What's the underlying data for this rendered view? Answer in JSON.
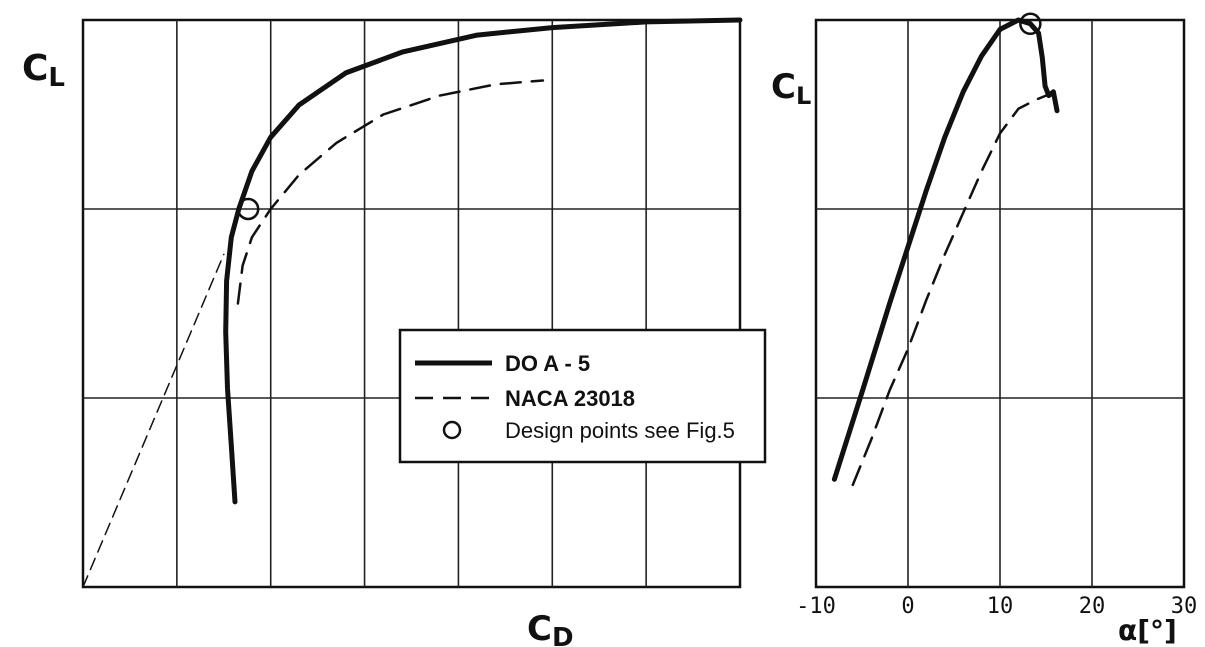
{
  "chart_data": [
    {
      "type": "line",
      "xlabel": "C_D",
      "ylabel": "C_L",
      "xlim": [
        0,
        7
      ],
      "ylim": [
        0,
        3
      ],
      "grid": true,
      "x_gridlines": [
        1,
        2,
        3,
        4,
        5,
        6
      ],
      "y_gridlines": [
        1,
        2
      ],
      "series": [
        {
          "name": "DO A-5",
          "style": "solid-thick",
          "x": [
            1.62,
            1.58,
            1.54,
            1.52,
            1.53,
            1.58,
            1.66,
            1.8,
            2.0,
            2.3,
            2.8,
            3.4,
            4.2,
            5.0,
            6.0,
            7.0
          ],
          "y": [
            0.45,
            0.75,
            1.05,
            1.35,
            1.62,
            1.85,
            2.0,
            2.2,
            2.38,
            2.55,
            2.72,
            2.83,
            2.92,
            2.96,
            2.99,
            3.0
          ]
        },
        {
          "name": "NACA 23018",
          "style": "dashed",
          "x": [
            1.65,
            1.7,
            1.8,
            2.0,
            2.3,
            2.7,
            3.2,
            3.8,
            4.4,
            4.9
          ],
          "y": [
            1.5,
            1.7,
            1.85,
            2.0,
            2.18,
            2.35,
            2.5,
            2.6,
            2.66,
            2.68
          ]
        },
        {
          "name": "",
          "style": "thin-dashed",
          "x": [
            0.0,
            1.5
          ],
          "y": [
            0.0,
            1.76
          ]
        }
      ],
      "design_points": [
        {
          "x": 1.76,
          "y": 2.0
        }
      ]
    },
    {
      "type": "line",
      "xlabel": "α[°]",
      "ylabel": "C_L",
      "xlim": [
        -10,
        30
      ],
      "ylim": [
        0,
        3
      ],
      "grid": true,
      "x_ticks": [
        -10,
        0,
        10,
        20,
        30
      ],
      "y_gridlines": [
        1,
        2
      ],
      "series": [
        {
          "name": "DO A-5",
          "style": "solid-thick",
          "x": [
            -8.0,
            -5.0,
            -2.0,
            0.0,
            2.0,
            4.0,
            6.0,
            8.0,
            10.0,
            12.0,
            13.3,
            14.2,
            14.6,
            14.9,
            15.3,
            15.8,
            16.2
          ],
          "y": [
            0.57,
            1.03,
            1.5,
            1.8,
            2.1,
            2.38,
            2.62,
            2.81,
            2.95,
            3.0,
            2.98,
            2.93,
            2.8,
            2.65,
            2.6,
            2.62,
            2.52
          ]
        },
        {
          "name": "NACA 23018",
          "style": "dashed",
          "x": [
            -6.0,
            -4.0,
            -2.0,
            0.0,
            2.0,
            4.0,
            6.0,
            8.0,
            10.0,
            12.0,
            14.0,
            15.0
          ],
          "y": [
            0.54,
            0.78,
            1.04,
            1.26,
            1.52,
            1.76,
            1.98,
            2.2,
            2.4,
            2.53,
            2.58,
            2.6
          ]
        }
      ],
      "design_points": [
        {
          "x": 13.3,
          "y": 2.98
        }
      ]
    }
  ],
  "labels": {
    "left_ylabel_main": "C",
    "left_ylabel_sub": "L",
    "left_xlabel_main": "C",
    "left_xlabel_sub": "D",
    "right_ylabel_main": "C",
    "right_ylabel_sub": "L",
    "right_xlabel": "α[°]",
    "right_ticks": [
      "-10",
      "0",
      "10",
      "20",
      "30"
    ]
  },
  "legend": {
    "item1": "DO  A - 5",
    "item2": "NACA  23018",
    "item3": "Design points see Fig.5"
  }
}
